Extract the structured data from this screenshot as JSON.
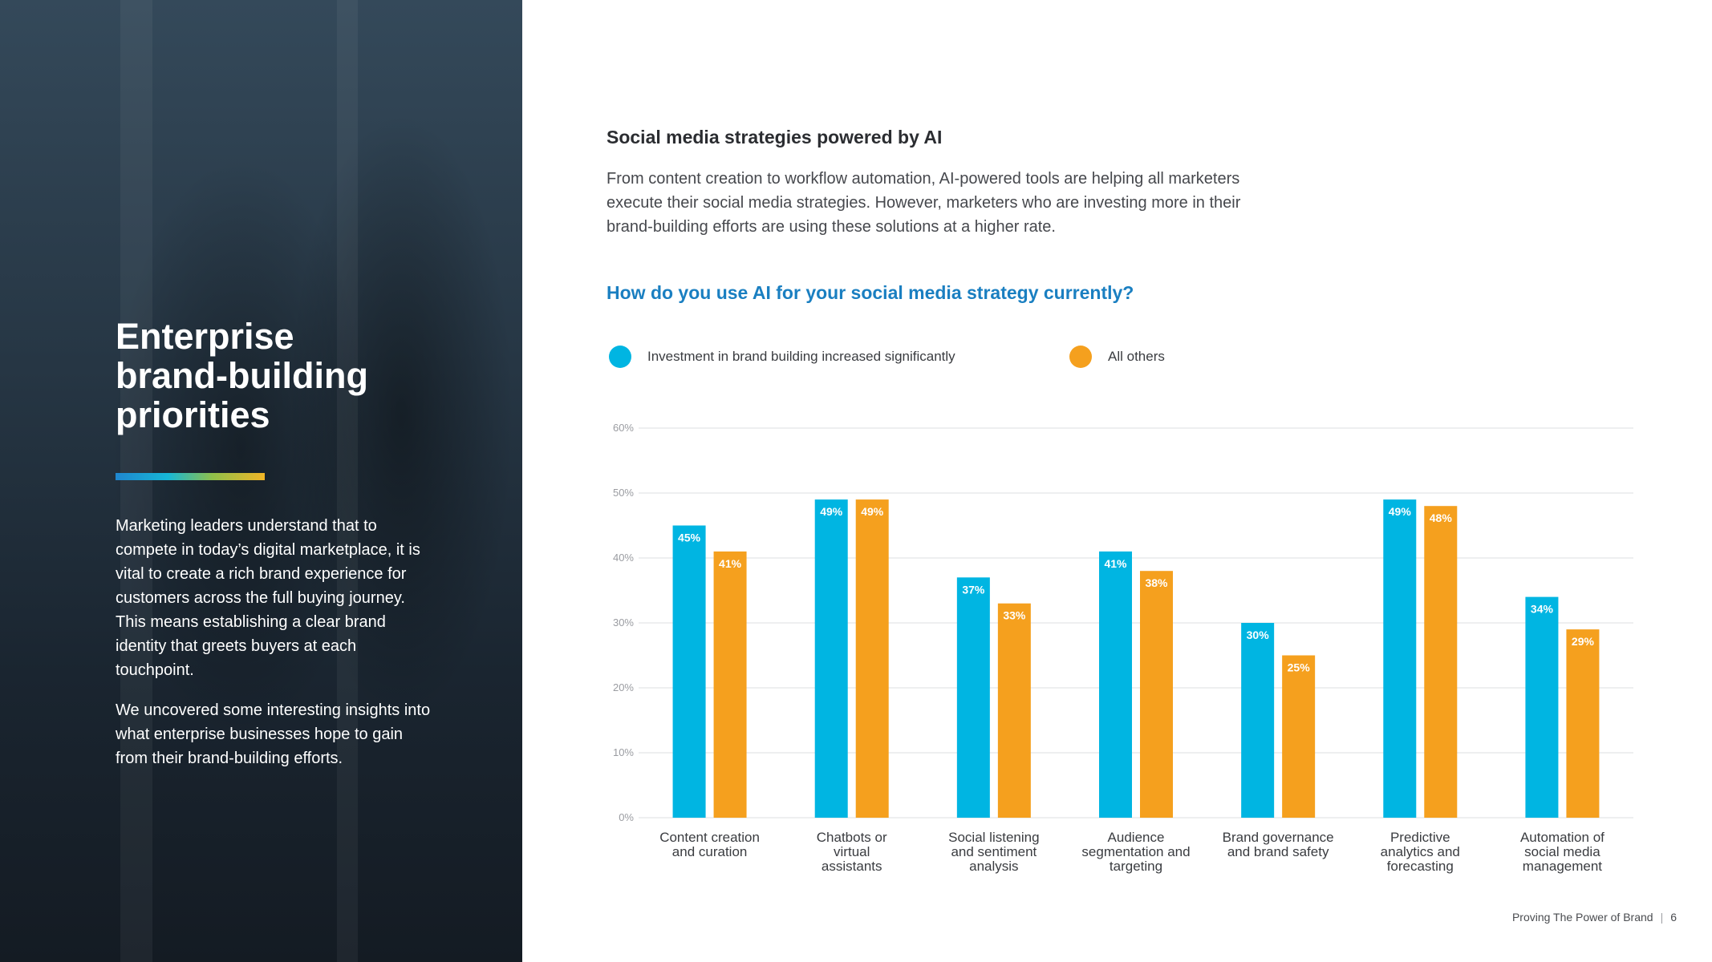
{
  "left": {
    "title": "Enterprise\nbrand-building\npriorities",
    "paragraph_1": "Marketing leaders understand that to compete in today’s digital marketplace, it is vital to create a rich brand experience for customers across the full buying journey. This means establishing a clear brand identity that greets buyers at each touchpoint.",
    "paragraph_2": "We uncovered some interesting insights into what enterprise businesses hope to gain from their brand-building efforts."
  },
  "main": {
    "heading": "Social media strategies powered by AI",
    "intro": "From content creation to workflow automation, AI-powered tools are helping all marketers execute their social media strategies. However, marketers who are investing more in their brand-building efforts are using these solutions at a higher rate."
  },
  "chart_data": {
    "type": "bar",
    "title": "How do you use AI for your social media strategy currently?",
    "categories": [
      "Content creation and curation",
      "Chatbots or virtual assistants",
      "Social listening and sentiment analysis",
      "Audience segmentation and targeting",
      "Brand governance and brand safety",
      "Predictive analytics and forecasting",
      "Automation of social media management"
    ],
    "series": [
      {
        "name": "Investment in brand building increased significantly",
        "color": "#00b5e2",
        "values": [
          45,
          49,
          37,
          41,
          30,
          49,
          34
        ]
      },
      {
        "name": "All others",
        "color": "#f5a01e",
        "values": [
          41,
          49,
          33,
          38,
          25,
          48,
          29
        ]
      }
    ],
    "yticks": [
      "0%",
      "10%",
      "20%",
      "30%",
      "40%",
      "50%",
      "60%"
    ],
    "ylim": [
      0,
      60
    ],
    "grid": true,
    "legend_position": "top"
  },
  "footer": {
    "publication": "Proving The Power of Brand",
    "page_number": "6"
  }
}
